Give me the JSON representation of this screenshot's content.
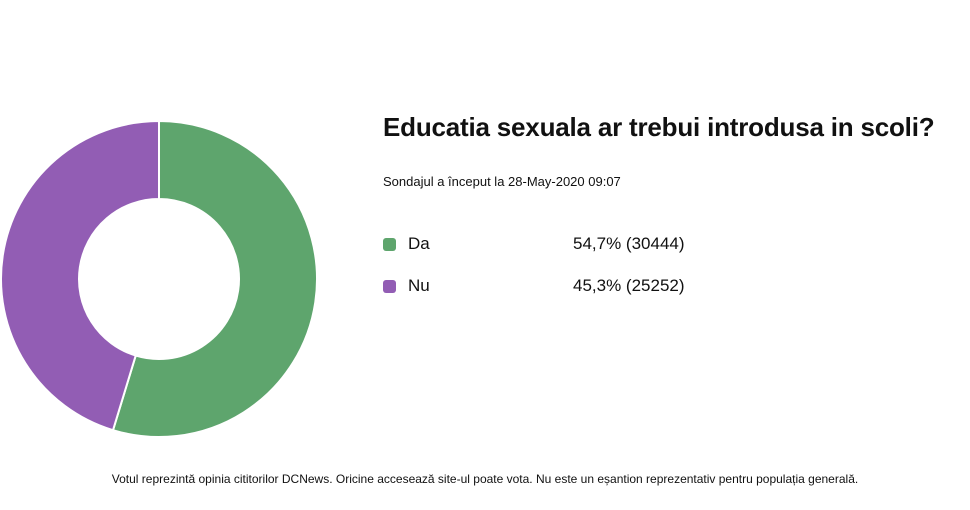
{
  "chart_data": {
    "type": "pie",
    "title": "Educatia sexuala ar trebui introdusa in scoli?",
    "subtitle": "Sondajul a început la 28-May-2020 09:07",
    "donut": true,
    "legend": "right",
    "series": [
      {
        "name": "Da",
        "percent": 54.7,
        "count": 30444,
        "percent_label": "54,7% (30444)",
        "color": "#5ea56d"
      },
      {
        "name": "Nu",
        "percent": 45.3,
        "count": 25252,
        "percent_label": "45,3% (25252)",
        "color": "#925db4"
      }
    ]
  },
  "footer": {
    "note": "Votul reprezintă opinia cititorilor DCNews. Oricine accesează site-ul poate vota. Nu este un eșantion reprezentativ pentru populația generală."
  }
}
